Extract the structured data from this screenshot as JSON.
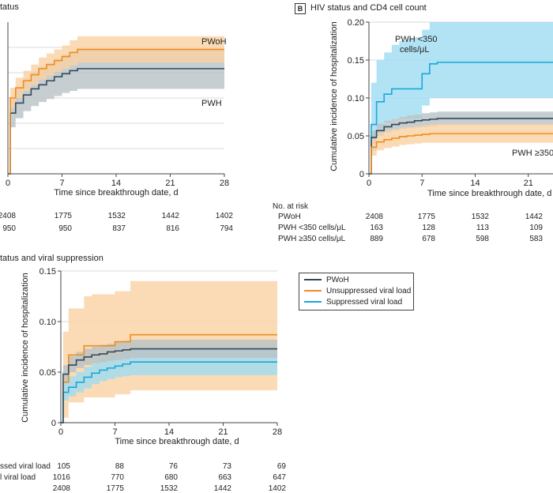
{
  "colors": {
    "pwoh": "#2f4a5c",
    "orange": "#f08c1e",
    "blue": "#1aa7d9",
    "pwoh_band": "#b9c2c6",
    "orange_band": "#fad2a2",
    "blue_band": "#9fdcf3"
  },
  "panel_a": {
    "title_fragment": "tatus",
    "label_pwoh": "PWoH",
    "label_pwh": "PWH",
    "xlabel": "Time since breakthrough date, d",
    "xticks": [
      "0",
      "7",
      "14",
      "21",
      "28"
    ],
    "risk_rows": [
      {
        "values": [
          "2408",
          "1775",
          "1532",
          "1442",
          "1402"
        ]
      },
      {
        "values": [
          "950",
          "950",
          "837",
          "816",
          "794"
        ]
      }
    ]
  },
  "panel_b": {
    "badge": "B",
    "title": "HIV status and CD4 cell count",
    "ylabel": "Cumulative incidence of hospitalization",
    "xlabel": "Time since breakthrough date, d",
    "yticks": [
      "0",
      "0.05",
      "0.10",
      "0.15",
      "0.20"
    ],
    "xticks": [
      "0",
      "7",
      "14",
      "21"
    ],
    "label_low": [
      "PWH <350",
      "cells/μL"
    ],
    "label_high": "PWH ≥350 c",
    "risk_header": "No. at risk",
    "risk_rows": [
      {
        "label": "PWoH",
        "values": [
          "2408",
          "1775",
          "1532",
          "1442"
        ]
      },
      {
        "label": "PWH <350 cells/μL",
        "values": [
          "163",
          "128",
          "113",
          "109"
        ]
      },
      {
        "label": "PWH ≥350 cells/μL",
        "values": [
          "889",
          "678",
          "598",
          "583"
        ]
      }
    ]
  },
  "panel_c": {
    "title_fragment": "tatus and viral suppression",
    "ylabel": "Cumulative incidence of hospitalization",
    "xlabel": "Time since breakthrough date, d",
    "yticks": [
      "0",
      "0.05",
      "0.10",
      "0.15"
    ],
    "xticks": [
      "0",
      "7",
      "14",
      "21",
      "28"
    ],
    "legend": [
      "PWoH",
      "Unsuppressed viral load",
      "Suppressed viral load"
    ],
    "risk_rows": [
      {
        "label": "ssed viral load",
        "values": [
          "105",
          "88",
          "76",
          "73",
          "69"
        ]
      },
      {
        "label": "l viral load",
        "values": [
          "1016",
          "770",
          "680",
          "663",
          "647"
        ]
      },
      {
        "label": "",
        "values": [
          "2408",
          "1775",
          "1532",
          "1442",
          "1402"
        ]
      }
    ]
  },
  "chart_data": [
    {
      "type": "line",
      "panel": "A",
      "xlabel": "Time since breakthrough date, d",
      "xlim": [
        0,
        28
      ],
      "series": [
        {
          "name": "PWoH",
          "x": [
            0,
            0.3,
            1,
            2,
            3,
            4,
            5,
            6,
            7,
            8,
            9,
            28
          ],
          "y": [
            0,
            0.075,
            0.085,
            0.092,
            0.098,
            0.104,
            0.108,
            0.112,
            0.116,
            0.12,
            0.123,
            0.123
          ],
          "band_lower": [
            0,
            0.065,
            0.075,
            0.082,
            0.088,
            0.093,
            0.097,
            0.101,
            0.104,
            0.107,
            0.11,
            0.11
          ],
          "band_upper": [
            0,
            0.085,
            0.095,
            0.102,
            0.108,
            0.115,
            0.119,
            0.123,
            0.127,
            0.132,
            0.136,
            0.136
          ]
        },
        {
          "name": "PWH",
          "x": [
            0,
            0.3,
            1,
            2,
            3,
            4,
            5,
            6,
            7,
            8,
            9,
            28
          ],
          "y": [
            0,
            0.06,
            0.07,
            0.078,
            0.084,
            0.088,
            0.092,
            0.096,
            0.099,
            0.102,
            0.104,
            0.104
          ],
          "band_lower": [
            0,
            0.046,
            0.055,
            0.062,
            0.067,
            0.071,
            0.074,
            0.077,
            0.08,
            0.082,
            0.084,
            0.084
          ],
          "band_upper": [
            0,
            0.074,
            0.085,
            0.094,
            0.101,
            0.106,
            0.11,
            0.114,
            0.118,
            0.121,
            0.124,
            0.124
          ]
        }
      ]
    },
    {
      "type": "line",
      "panel": "B",
      "ylabel": "Cumulative incidence of hospitalization",
      "xlabel": "Time since breakthrough date, d",
      "xlim": [
        0,
        28
      ],
      "ylim": [
        0,
        0.2
      ],
      "series": [
        {
          "name": "PWoH",
          "x": [
            0,
            0.3,
            1,
            2,
            3,
            4,
            5,
            6,
            7,
            8,
            9,
            28
          ],
          "y": [
            0,
            0.048,
            0.057,
            0.062,
            0.065,
            0.067,
            0.068,
            0.07,
            0.071,
            0.072,
            0.073,
            0.073
          ],
          "band_lower": [
            0,
            0.04,
            0.05,
            0.054,
            0.057,
            0.059,
            0.06,
            0.061,
            0.062,
            0.063,
            0.064,
            0.064
          ],
          "band_upper": [
            0,
            0.057,
            0.066,
            0.07,
            0.073,
            0.075,
            0.077,
            0.078,
            0.08,
            0.081,
            0.082,
            0.082
          ]
        },
        {
          "name": "PWH <350 cells/μL",
          "x": [
            0,
            0.3,
            1,
            2,
            3,
            4,
            5,
            6,
            7,
            8,
            9,
            28
          ],
          "y": [
            0,
            0.065,
            0.095,
            0.105,
            0.112,
            0.112,
            0.112,
            0.112,
            0.132,
            0.145,
            0.147,
            0.147
          ],
          "band_lower": [
            0,
            0.03,
            0.06,
            0.068,
            0.073,
            0.073,
            0.073,
            0.073,
            0.09,
            0.1,
            0.1,
            0.1
          ],
          "band_upper": [
            0,
            0.12,
            0.15,
            0.16,
            0.17,
            0.175,
            0.178,
            0.18,
            0.19,
            0.2,
            0.2,
            0.2
          ]
        },
        {
          "name": "PWH ≥350 cells/μL",
          "x": [
            0,
            0.3,
            1,
            2,
            3,
            4,
            5,
            6,
            7,
            8,
            9,
            28
          ],
          "y": [
            0,
            0.035,
            0.042,
            0.045,
            0.047,
            0.049,
            0.05,
            0.051,
            0.052,
            0.053,
            0.053,
            0.053
          ],
          "band_lower": [
            0,
            0.024,
            0.031,
            0.034,
            0.036,
            0.038,
            0.039,
            0.04,
            0.041,
            0.041,
            0.041,
            0.041
          ],
          "band_upper": [
            0,
            0.046,
            0.054,
            0.057,
            0.059,
            0.061,
            0.062,
            0.063,
            0.064,
            0.065,
            0.066,
            0.066
          ]
        }
      ]
    },
    {
      "type": "line",
      "panel": "C",
      "ylabel": "Cumulative incidence of hospitalization",
      "xlabel": "Time since breakthrough date, d",
      "xlim": [
        0,
        28
      ],
      "ylim": [
        0,
        0.15
      ],
      "series": [
        {
          "name": "PWoH",
          "x": [
            0,
            0.3,
            1,
            2,
            3,
            4,
            5,
            6,
            7,
            8,
            9,
            28
          ],
          "y": [
            0,
            0.048,
            0.057,
            0.062,
            0.065,
            0.067,
            0.068,
            0.07,
            0.071,
            0.072,
            0.073,
            0.073
          ],
          "band_lower": [
            0,
            0.04,
            0.05,
            0.054,
            0.057,
            0.059,
            0.06,
            0.061,
            0.062,
            0.063,
            0.064,
            0.064
          ],
          "band_upper": [
            0,
            0.057,
            0.066,
            0.07,
            0.073,
            0.075,
            0.077,
            0.078,
            0.08,
            0.081,
            0.082,
            0.082
          ]
        },
        {
          "name": "Unsuppressed viral load",
          "x": [
            0,
            0.3,
            1,
            3,
            4,
            7,
            9,
            28
          ],
          "y": [
            0,
            0.04,
            0.067,
            0.076,
            0.076,
            0.08,
            0.087,
            0.087
          ],
          "band_lower": [
            0,
            0.005,
            0.02,
            0.025,
            0.025,
            0.028,
            0.032,
            0.032
          ],
          "band_upper": [
            0,
            0.09,
            0.113,
            0.125,
            0.127,
            0.13,
            0.14,
            0.14
          ]
        },
        {
          "name": "Suppressed viral load",
          "x": [
            0,
            0.3,
            1,
            2,
            3,
            4,
            5,
            6,
            7,
            8,
            9,
            28
          ],
          "y": [
            0,
            0.03,
            0.035,
            0.04,
            0.045,
            0.049,
            0.052,
            0.054,
            0.056,
            0.058,
            0.06,
            0.06
          ],
          "band_lower": [
            0,
            0.022,
            0.026,
            0.03,
            0.034,
            0.038,
            0.041,
            0.043,
            0.045,
            0.046,
            0.047,
            0.047
          ],
          "band_upper": [
            0,
            0.04,
            0.046,
            0.05,
            0.055,
            0.06,
            0.063,
            0.066,
            0.068,
            0.07,
            0.073,
            0.073
          ]
        }
      ]
    }
  ]
}
